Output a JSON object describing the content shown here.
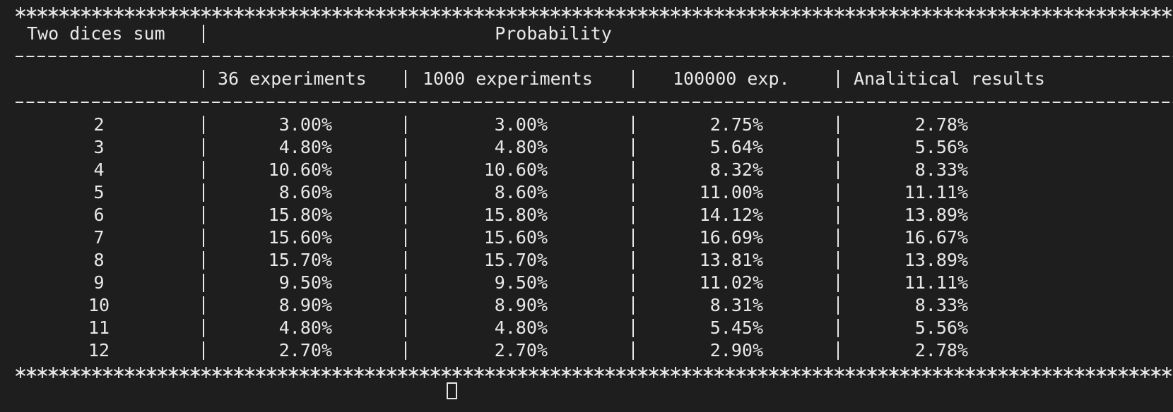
{
  "table": {
    "header": {
      "sum": "Two dices sum",
      "group": "Probability",
      "columns": [
        "36 experiments",
        "1000 experiments",
        "100000 exp.",
        "Analitical results"
      ]
    },
    "rows": [
      [
        "2",
        "3.00%",
        "3.00%",
        "2.75%",
        "2.78%"
      ],
      [
        "3",
        "4.80%",
        "4.80%",
        "5.64%",
        "5.56%"
      ],
      [
        "4",
        "10.60%",
        "10.60%",
        "8.32%",
        "8.33%"
      ],
      [
        "5",
        "8.60%",
        "8.60%",
        "11.00%",
        "11.11%"
      ],
      [
        "6",
        "15.80%",
        "15.80%",
        "14.12%",
        "13.89%"
      ],
      [
        "7",
        "15.60%",
        "15.60%",
        "16.69%",
        "16.67%"
      ],
      [
        "8",
        "15.70%",
        "15.70%",
        "13.81%",
        "13.89%"
      ],
      [
        "9",
        "9.50%",
        "9.50%",
        "11.02%",
        "11.11%"
      ],
      [
        "10",
        "8.90%",
        "8.90%",
        "8.31%",
        "8.33%"
      ],
      [
        "11",
        "4.80%",
        "4.80%",
        "5.45%",
        "5.56%"
      ],
      [
        "12",
        "2.70%",
        "2.70%",
        "2.90%",
        "2.78%"
      ]
    ]
  }
}
